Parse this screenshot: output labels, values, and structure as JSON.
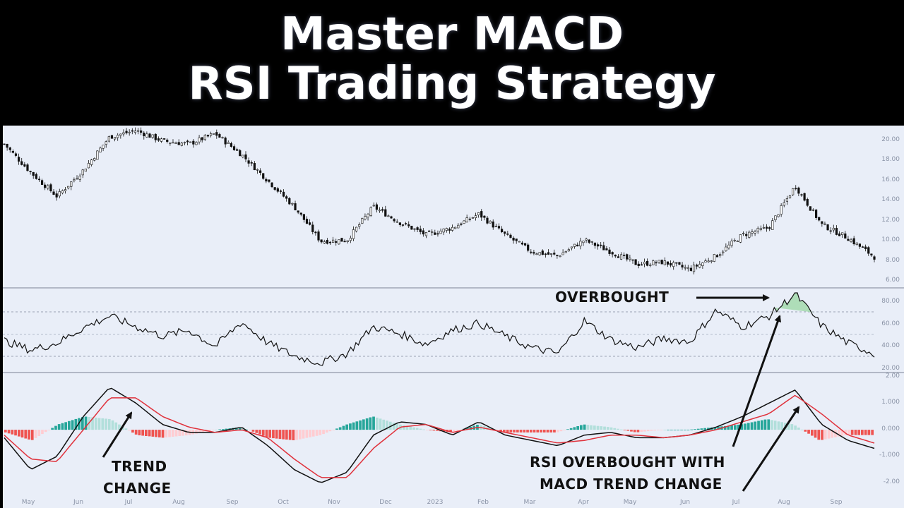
{
  "banner": {
    "line1": "Master MACD",
    "line2": "RSI Trading Strategy"
  },
  "colors": {
    "background": "#e9eef8",
    "price": "#111111",
    "rsi": "#111111",
    "macd_line": "#111111",
    "signal_line": "#e0323c",
    "hist_pos_strong": "#26a69a",
    "hist_pos_weak": "#b2dfdb",
    "hist_neg_strong": "#ef5350",
    "hist_neg_weak": "#ffcdd2",
    "overbought_fill": "#9fd8a8"
  },
  "chart_data": [
    {
      "type": "candlestick",
      "panel": "price",
      "ylim": [
        6,
        21
      ],
      "yticks": [
        "20.00",
        "18.00",
        "16.00",
        "14.00",
        "12.00",
        "10.00",
        "8.00",
        "6.00"
      ],
      "x": [
        "May",
        "May",
        "Jun",
        "Jun",
        "Jul",
        "Jul",
        "Aug",
        "Aug",
        "Sep",
        "Sep",
        "Oct",
        "Oct",
        "Nov",
        "Nov",
        "Dec",
        "Dec",
        "2023",
        "2023",
        "Feb",
        "Feb",
        "Mar",
        "Mar",
        "Apr",
        "Apr",
        "May",
        "May",
        "Jun",
        "Jun",
        "Jul",
        "Jul",
        "Aug",
        "Aug",
        "Sep",
        "Sep"
      ],
      "close": [
        19.5,
        16.8,
        14.5,
        17.0,
        20.2,
        20.8,
        19.8,
        19.5,
        20.5,
        18.5,
        16.0,
        13.5,
        10.2,
        10.3,
        13.5,
        12.0,
        10.8,
        11.5,
        12.8,
        10.8,
        9.2,
        8.8,
        10.3,
        9.2,
        8.0,
        8.2,
        7.5,
        8.8,
        10.8,
        11.5,
        15.5,
        11.8,
        10.5,
        8.7
      ]
    },
    {
      "type": "line",
      "panel": "rsi",
      "ylim": [
        20,
        90
      ],
      "yticks": [
        "80.00",
        "60.00",
        "40.00",
        "20.00"
      ],
      "reference_lines": [
        70,
        50,
        30
      ],
      "values": [
        46,
        38,
        44,
        57,
        67,
        58,
        50,
        55,
        41,
        62,
        44,
        33,
        27,
        35,
        58,
        52,
        43,
        55,
        61,
        50,
        40,
        35,
        63,
        47,
        40,
        48,
        45,
        72,
        58,
        67,
        86,
        59,
        44,
        35
      ]
    },
    {
      "type": "line",
      "panel": "macd",
      "ylim": [
        -2.2,
        2.1
      ],
      "yticks": [
        "2.00",
        "1.000",
        "0.000",
        "-1.000",
        "-2.00"
      ],
      "series": [
        {
          "values": [
            -0.3,
            -1.5,
            -1.0,
            0.5,
            1.6,
            1.0,
            0.2,
            -0.1,
            -0.1,
            0.1,
            -0.6,
            -1.5,
            -2.0,
            -1.6,
            -0.2,
            0.3,
            0.2,
            -0.2,
            0.3,
            -0.2,
            -0.4,
            -0.6,
            -0.2,
            -0.1,
            -0.3,
            -0.3,
            -0.2,
            0.1,
            0.5,
            1.0,
            1.5,
            0.2,
            -0.4,
            -0.7
          ]
        },
        {
          "values": [
            -0.2,
            -1.1,
            -1.2,
            0.0,
            1.2,
            1.2,
            0.5,
            0.1,
            -0.1,
            0.0,
            -0.3,
            -1.1,
            -1.8,
            -1.8,
            -0.7,
            0.1,
            0.2,
            -0.1,
            0.1,
            -0.1,
            -0.3,
            -0.5,
            -0.4,
            -0.2,
            -0.2,
            -0.3,
            -0.2,
            0.0,
            0.3,
            0.6,
            1.3,
            0.6,
            -0.2,
            -0.5
          ]
        }
      ],
      "histogram": [
        -0.1,
        -0.4,
        0.2,
        0.5,
        0.4,
        -0.2,
        -0.3,
        -0.2,
        0.0,
        0.1,
        -0.3,
        -0.4,
        -0.2,
        0.2,
        0.5,
        0.2,
        0.0,
        -0.1,
        0.2,
        -0.1,
        -0.1,
        -0.1,
        0.2,
        0.1,
        -0.1,
        0.0,
        0.0,
        0.1,
        0.2,
        0.4,
        0.2,
        -0.4,
        -0.2,
        -0.2
      ]
    }
  ],
  "axis": {
    "months": [
      "May",
      "Jun",
      "Jul",
      "Aug",
      "Sep",
      "Oct",
      "Nov",
      "Dec",
      "2023",
      "Feb",
      "Mar",
      "Apr",
      "May",
      "Jun",
      "Jul",
      "Aug",
      "Sep"
    ]
  },
  "annotations": {
    "overbought": "OVERBOUGHT",
    "trend_change_1": "TREND",
    "trend_change_2": "CHANGE",
    "rsi_macd_1": "RSI OVERBOUGHT WITH",
    "rsi_macd_2": "MACD TREND CHANGE"
  }
}
